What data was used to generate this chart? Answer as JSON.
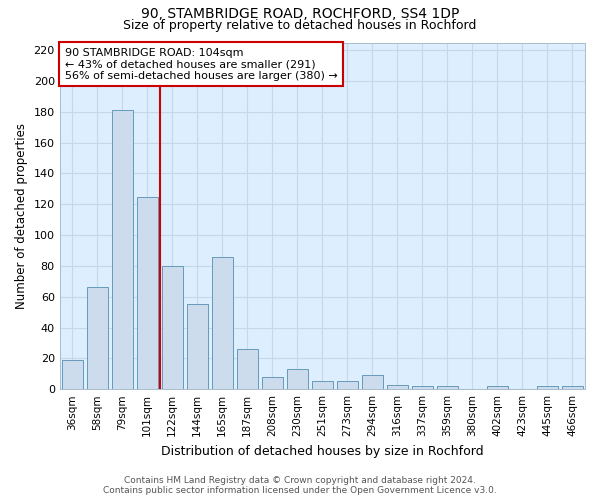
{
  "title": "90, STAMBRIDGE ROAD, ROCHFORD, SS4 1DP",
  "subtitle": "Size of property relative to detached houses in Rochford",
  "xlabel": "Distribution of detached houses by size in Rochford",
  "ylabel": "Number of detached properties",
  "footnote1": "Contains HM Land Registry data © Crown copyright and database right 2024.",
  "footnote2": "Contains public sector information licensed under the Open Government Licence v3.0.",
  "bar_labels": [
    "36sqm",
    "58sqm",
    "79sqm",
    "101sqm",
    "122sqm",
    "144sqm",
    "165sqm",
    "187sqm",
    "208sqm",
    "230sqm",
    "251sqm",
    "273sqm",
    "294sqm",
    "316sqm",
    "337sqm",
    "359sqm",
    "380sqm",
    "402sqm",
    "423sqm",
    "445sqm",
    "466sqm"
  ],
  "bar_values": [
    19,
    66,
    181,
    125,
    80,
    55,
    86,
    26,
    8,
    13,
    5,
    5,
    9,
    3,
    2,
    2,
    0,
    2,
    0,
    2,
    2
  ],
  "bar_color": "#ccdcec",
  "bar_edge_color": "#6699bb",
  "ylim": [
    0,
    225
  ],
  "yticks": [
    0,
    20,
    40,
    60,
    80,
    100,
    120,
    140,
    160,
    180,
    200,
    220
  ],
  "red_line_x": 3.5,
  "annotation_text": "90 STAMBRIDGE ROAD: 104sqm\n← 43% of detached houses are smaller (291)\n56% of semi-detached houses are larger (380) →",
  "annotation_box_color": "#ffffff",
  "annotation_box_edge": "#cc0000",
  "grid_color": "#c5d8e8",
  "background_color": "#ddeeff"
}
